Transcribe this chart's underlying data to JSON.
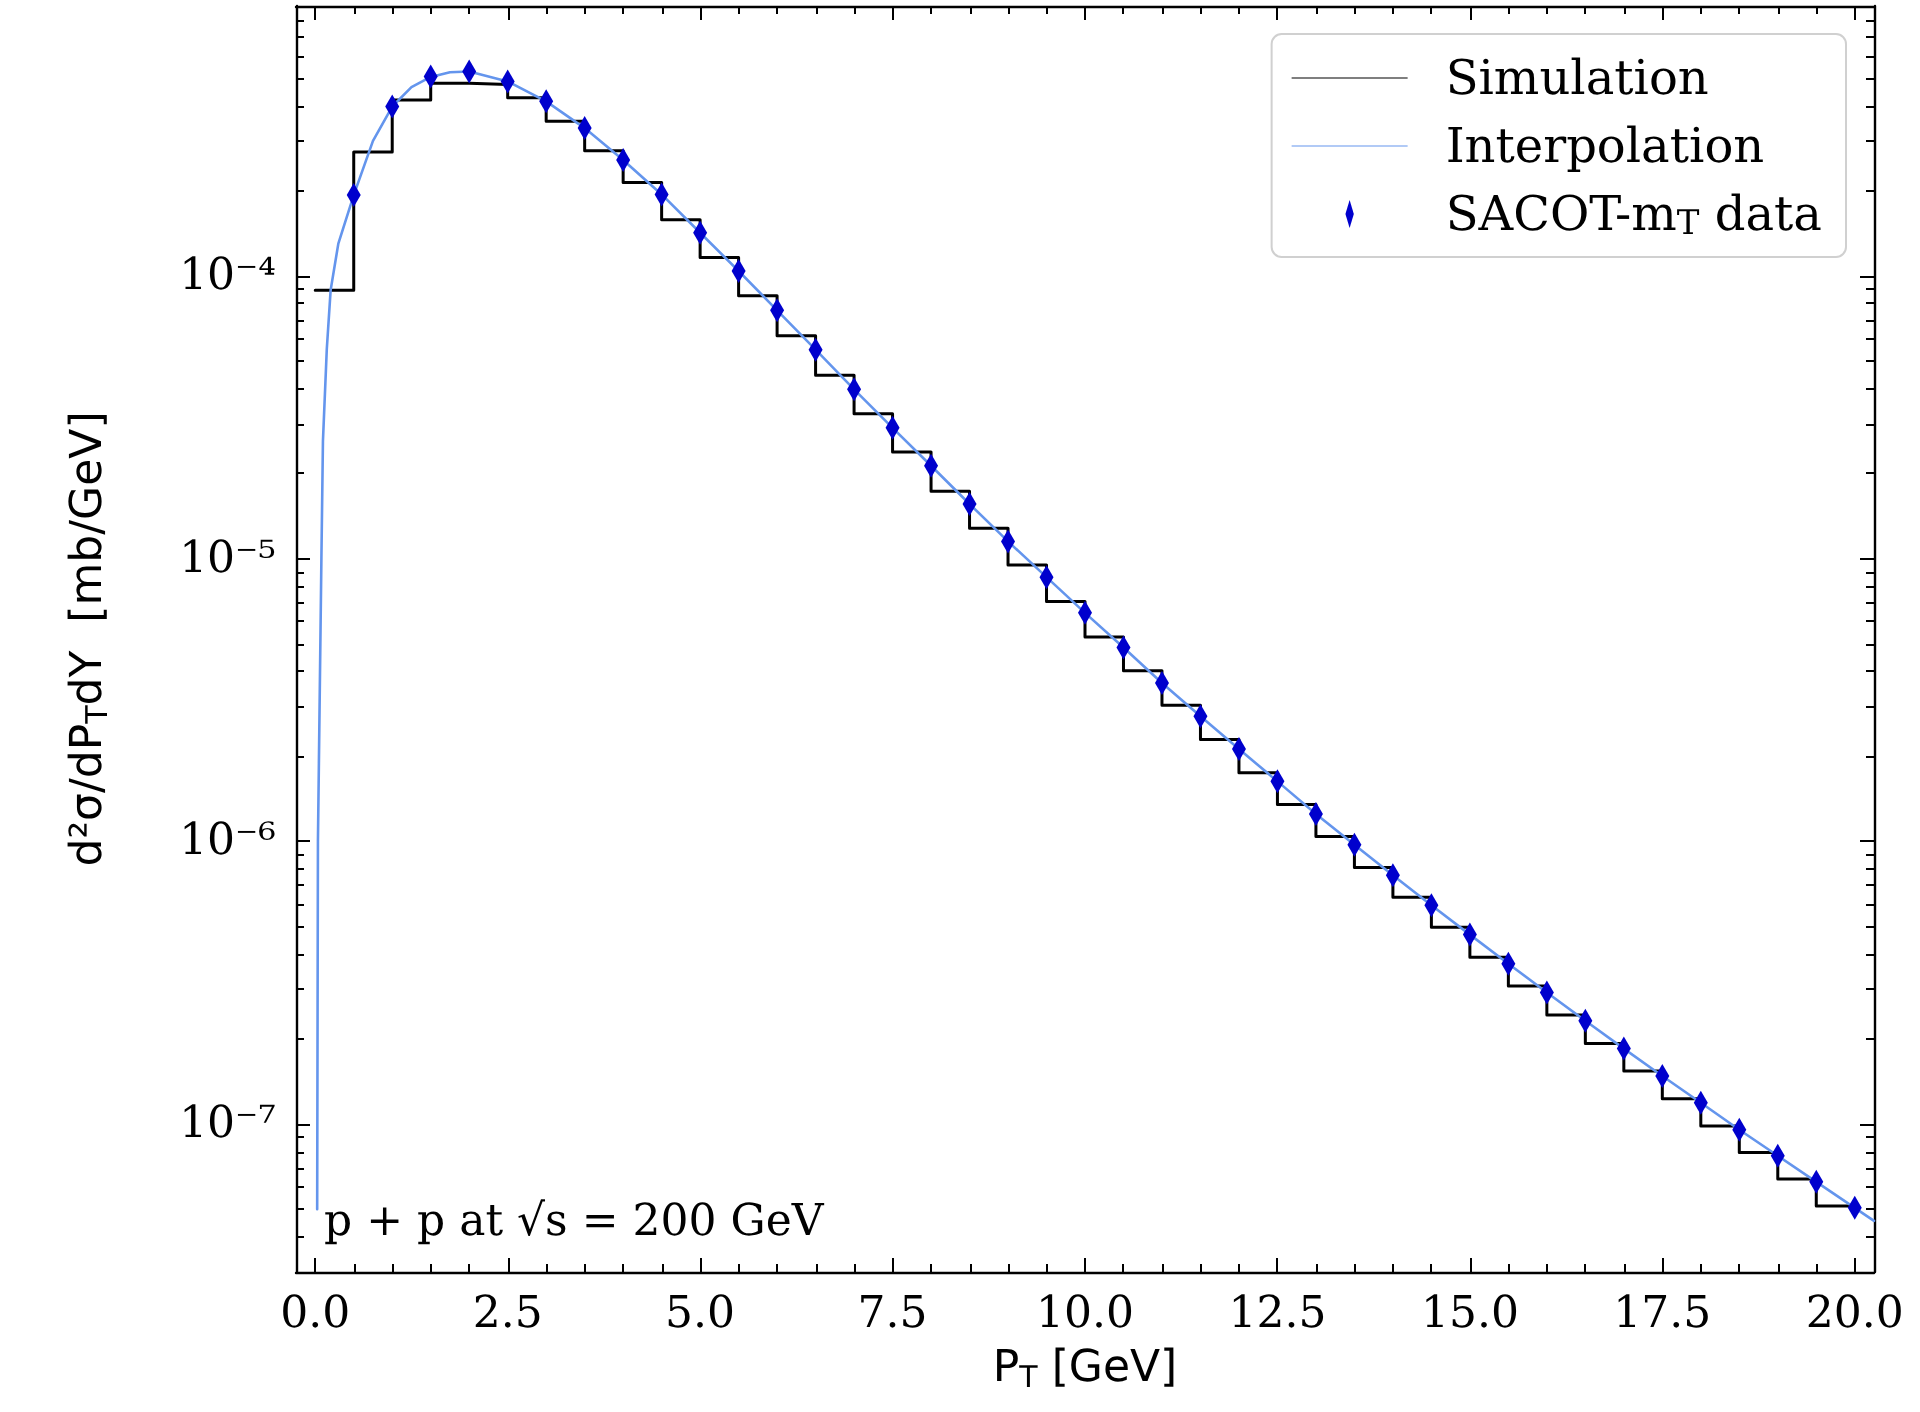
{
  "chart_data": {
    "type": "line",
    "xlabel": "P$_{T}$ [GeV]",
    "ylabel": "d²σ/dP$_{T}$dY  [mb/GeV]",
    "annotations": [
      "p + p at √s = 200 GeV"
    ],
    "log": "y",
    "grid": false,
    "legend": "top right",
    "xlim": [
      -0.25,
      20.25
    ],
    "ylim": [
      3e-08,
      0.0009
    ],
    "xticks": [
      {
        "value": 0,
        "label": "0.0"
      },
      {
        "value": 0.5,
        "label": null
      },
      {
        "value": 1,
        "label": null
      },
      {
        "value": 1.5,
        "label": null
      },
      {
        "value": 2,
        "label": null
      },
      {
        "value": 2.5,
        "label": "2.5"
      },
      {
        "value": 3,
        "label": null
      },
      {
        "value": 3.5,
        "label": null
      },
      {
        "value": 4,
        "label": null
      },
      {
        "value": 4.5,
        "label": null
      },
      {
        "value": 5,
        "label": "5.0"
      },
      {
        "value": 5.5,
        "label": null
      },
      {
        "value": 6,
        "label": null
      },
      {
        "value": 6.5,
        "label": null
      },
      {
        "value": 7,
        "label": null
      },
      {
        "value": 7.5,
        "label": "7.5"
      },
      {
        "value": 8,
        "label": null
      },
      {
        "value": 8.5,
        "label": null
      },
      {
        "value": 9,
        "label": null
      },
      {
        "value": 9.5,
        "label": null
      },
      {
        "value": 10,
        "label": "10.0"
      },
      {
        "value": 10.5,
        "label": null
      },
      {
        "value": 11,
        "label": null
      },
      {
        "value": 11.5,
        "label": null
      },
      {
        "value": 12,
        "label": null
      },
      {
        "value": 12.5,
        "label": "12.5"
      },
      {
        "value": 13,
        "label": null
      },
      {
        "value": 13.5,
        "label": null
      },
      {
        "value": 14,
        "label": null
      },
      {
        "value": 14.5,
        "label": null
      },
      {
        "value": 15,
        "label": "15.0"
      },
      {
        "value": 15.5,
        "label": null
      },
      {
        "value": 16,
        "label": null
      },
      {
        "value": 16.5,
        "label": null
      },
      {
        "value": 17,
        "label": null
      },
      {
        "value": 17.5,
        "label": "17.5"
      },
      {
        "value": 18,
        "label": null
      },
      {
        "value": 18.5,
        "label": null
      },
      {
        "value": 19,
        "label": null
      },
      {
        "value": 19.5,
        "label": null
      },
      {
        "value": 20,
        "label": "20.0"
      }
    ],
    "yticks": [
      {
        "value": 1e-07,
        "label": "10⁻⁷"
      },
      {
        "value": 1e-06,
        "label": "10⁻⁶"
      },
      {
        "value": 1e-05,
        "label": "10⁻⁵"
      },
      {
        "value": 0.0001,
        "label": "10⁻⁴"
      },
      {
        "value": 3e-08,
        "label": null
      },
      {
        "value": 4e-08,
        "label": null
      },
      {
        "value": 5e-08,
        "label": null
      },
      {
        "value": 6e-08,
        "label": null
      },
      {
        "value": 7e-08,
        "label": null
      },
      {
        "value": 8e-08,
        "label": null
      },
      {
        "value": 9e-08,
        "label": null
      },
      {
        "value": 2e-07,
        "label": null
      },
      {
        "value": 3e-07,
        "label": null
      },
      {
        "value": 4e-07,
        "label": null
      },
      {
        "value": 5e-07,
        "label": null
      },
      {
        "value": 6e-07,
        "label": null
      },
      {
        "value": 7e-07,
        "label": null
      },
      {
        "value": 8e-07,
        "label": null
      },
      {
        "value": 9e-07,
        "label": null
      },
      {
        "value": 2e-06,
        "label": null
      },
      {
        "value": 3e-06,
        "label": null
      },
      {
        "value": 4e-06,
        "label": null
      },
      {
        "value": 5e-06,
        "label": null
      },
      {
        "value": 6e-06,
        "label": null
      },
      {
        "value": 7e-06,
        "label": null
      },
      {
        "value": 8e-06,
        "label": null
      },
      {
        "value": 9e-06,
        "label": null
      },
      {
        "value": 2e-05,
        "label": null
      },
      {
        "value": 3e-05,
        "label": null
      },
      {
        "value": 4e-05,
        "label": null
      },
      {
        "value": 5e-05,
        "label": null
      },
      {
        "value": 6e-05,
        "label": null
      },
      {
        "value": 7e-05,
        "label": null
      },
      {
        "value": 8e-05,
        "label": null
      },
      {
        "value": 9e-05,
        "label": null
      },
      {
        "value": 0.0002,
        "label": null
      },
      {
        "value": 0.0003,
        "label": null
      },
      {
        "value": 0.0004,
        "label": null
      },
      {
        "value": 0.0005,
        "label": null
      },
      {
        "value": 0.0006,
        "label": null
      },
      {
        "value": 0.0007,
        "label": null
      },
      {
        "value": 0.0008,
        "label": null
      },
      {
        "value": 0.0009,
        "label": null
      }
    ],
    "series": [
      {
        "name": "Simulation",
        "type": "step",
        "color": "#000000",
        "marker": "none",
        "x": [
          0,
          0.5,
          1,
          1.5,
          2,
          2.5,
          3,
          3.5,
          4,
          4.5,
          5,
          5.5,
          6,
          6.5,
          7,
          7.5,
          8,
          8.5,
          9,
          9.5,
          10,
          10.5,
          11,
          11.5,
          12,
          12.5,
          13,
          13.5,
          14,
          14.5,
          15,
          15.5,
          16,
          16.5,
          17,
          17.5,
          18,
          18.5,
          19,
          19.5,
          20
        ],
        "values": [
          8.9e-05,
          0.000274,
          0.000419,
          0.00048,
          0.000475,
          0.000426,
          0.000352,
          0.000277,
          0.000214,
          0.000158,
          0.000116,
          8.5e-05,
          6.14e-05,
          4.45e-05,
          3.25e-05,
          2.38e-05,
          1.73e-05,
          1.28e-05,
          9.5e-06,
          7.05e-06,
          5.28e-06,
          4.01e-06,
          3.03e-06,
          2.29e-06,
          1.75e-06,
          1.35e-06,
          1.04e-06,
          8.09e-07,
          6.34e-07,
          4.97e-07,
          3.89e-07,
          3.08e-07,
          2.43e-07,
          1.93e-07,
          1.54e-07,
          1.23e-07,
          9.86e-08,
          7.94e-08,
          6.4e-08,
          5.14e-08,
          5.14e-08
        ]
      },
      {
        "name": "Interpolation",
        "color": "#6495ed",
        "marker": "none",
        "x": [
          0.025,
          0.035,
          0.08,
          0.1,
          0.15,
          0.2,
          0.3,
          0.5,
          0.75,
          1,
          1.25,
          1.5,
          1.75,
          2,
          2.5,
          3,
          3.5,
          4,
          4.5,
          5,
          5.5,
          6,
          6.5,
          7,
          7.5,
          8,
          8.5,
          9,
          9.5,
          10,
          10.5,
          11,
          11.5,
          12,
          12.5,
          13,
          13.5,
          14,
          14.5,
          15,
          15.5,
          16,
          16.5,
          17,
          17.5,
          18,
          18.5,
          19,
          19.5,
          20,
          20.25
        ],
        "values": [
          5e-08,
          1e-06,
          1e-05,
          2.6e-05,
          5.5e-05,
          8.9e-05,
          0.00013,
          0.000193,
          0.0003,
          0.000397,
          0.000465,
          0.000505,
          0.000525,
          0.000528,
          0.000487,
          0.000414,
          0.000333,
          0.000257,
          0.000194,
          0.000142,
          0.000104,
          7.55e-05,
          5.48e-05,
          3.97e-05,
          2.9e-05,
          2.13e-05,
          1.56e-05,
          1.15e-05,
          8.6e-06,
          6.43e-06,
          4.85e-06,
          3.63e-06,
          2.77e-06,
          2.12e-06,
          1.63e-06,
          1.25e-06,
          9.73e-07,
          7.59e-07,
          5.94e-07,
          4.68e-07,
          3.69e-07,
          2.92e-07,
          2.32e-07,
          1.85e-07,
          1.48e-07,
          1.19e-07,
          9.55e-08,
          7.73e-08,
          6.25e-08,
          5.06e-08,
          4.55e-08
        ]
      },
      {
        "name": "SACOT-m$_{T}$ data",
        "type": "scatter",
        "color": "#0000cd",
        "marker": "diamond",
        "x": [
          0.5,
          1,
          1.5,
          2,
          2.5,
          3,
          3.5,
          4,
          4.5,
          5,
          5.5,
          6,
          6.5,
          7,
          7.5,
          8,
          8.5,
          9,
          9.5,
          10,
          10.5,
          11,
          11.5,
          12,
          12.5,
          13,
          13.5,
          14,
          14.5,
          15,
          15.5,
          16,
          16.5,
          17,
          17.5,
          18,
          18.5,
          19,
          19.5,
          20
        ],
        "values": [
          0.000193,
          0.000397,
          0.000507,
          0.000528,
          0.000487,
          0.000414,
          0.000333,
          0.000257,
          0.000194,
          0.000142,
          0.000104,
          7.55e-05,
          5.48e-05,
          3.97e-05,
          2.9e-05,
          2.13e-05,
          1.56e-05,
          1.15e-05,
          8.6e-06,
          6.43e-06,
          4.85e-06,
          3.63e-06,
          2.77e-06,
          2.12e-06,
          1.63e-06,
          1.25e-06,
          9.73e-07,
          7.59e-07,
          5.94e-07,
          4.68e-07,
          3.69e-07,
          2.92e-07,
          2.32e-07,
          1.85e-07,
          1.48e-07,
          1.19e-07,
          9.55e-08,
          7.73e-08,
          6.25e-08,
          5.06e-08
        ]
      }
    ]
  }
}
